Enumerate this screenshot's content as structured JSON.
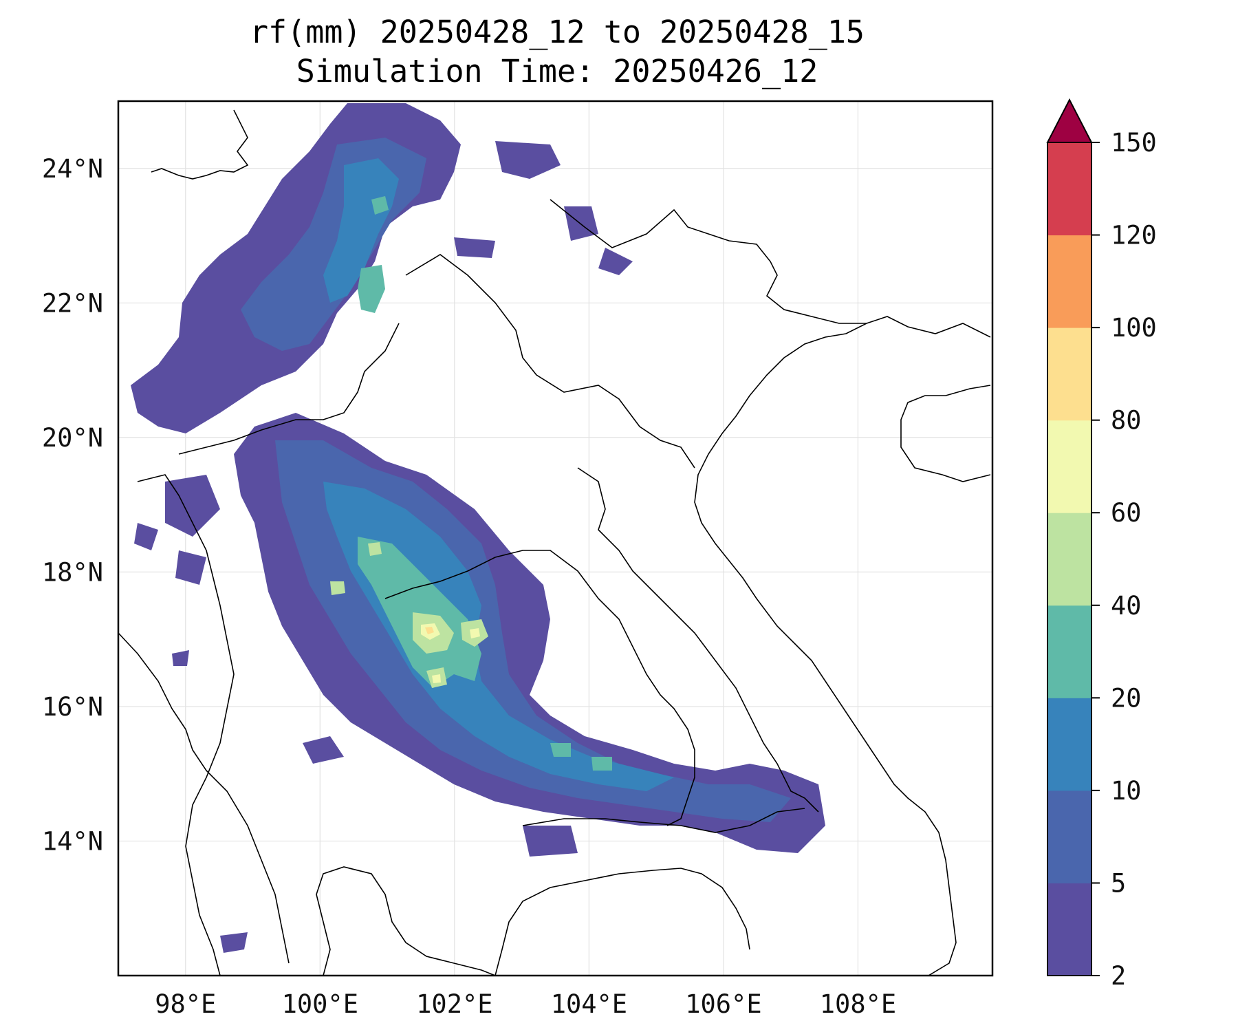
{
  "title": {
    "line1": "rf(mm) 20250428_12 to 20250428_15",
    "line2": "Simulation Time: 20250426_12"
  },
  "map": {
    "projection": "PlateCarree",
    "lon_range": [
      97.0,
      110.0
    ],
    "lat_range": [
      12.0,
      25.0
    ],
    "gridlines": true,
    "x_ticks": [
      "98°E",
      "100°E",
      "102°E",
      "104°E",
      "106°E",
      "108°E"
    ],
    "x_tick_values": [
      98,
      100,
      102,
      104,
      106,
      108
    ],
    "y_ticks": [
      "24°N",
      "22°N",
      "20°N",
      "18°N",
      "16°N",
      "14°N"
    ],
    "y_tick_values": [
      24,
      22,
      20,
      18,
      16,
      14
    ],
    "coastline_color": "#000000"
  },
  "colorbar": {
    "levels": [
      2,
      5,
      10,
      20,
      40,
      60,
      80,
      100,
      120,
      150
    ],
    "labels": [
      "2",
      "5",
      "10",
      "20",
      "40",
      "60",
      "80",
      "100",
      "120",
      "150"
    ],
    "colors": [
      "#5a4ea0",
      "#4a66ad",
      "#3783bb",
      "#5fbaa8",
      "#bde3a1",
      "#f2f9b0",
      "#fddf8f",
      "#f99c59",
      "#d53e4f"
    ],
    "extend_color": "#9e0142",
    "extend": "max"
  },
  "rain_field": {
    "description_units": "mm",
    "bands": [
      {
        "level": "2-5",
        "color": "#5a4ea0"
      },
      {
        "level": "5-10",
        "color": "#4a66ad"
      },
      {
        "level": "10-20",
        "color": "#3783bb"
      },
      {
        "level": "20-40",
        "color": "#5fbaa8"
      },
      {
        "level": "40-60",
        "color": "#bde3a1"
      },
      {
        "level": "60-80",
        "color": "#f2f9b0"
      },
      {
        "level": "80-100",
        "color": "#fddf8f"
      }
    ]
  }
}
